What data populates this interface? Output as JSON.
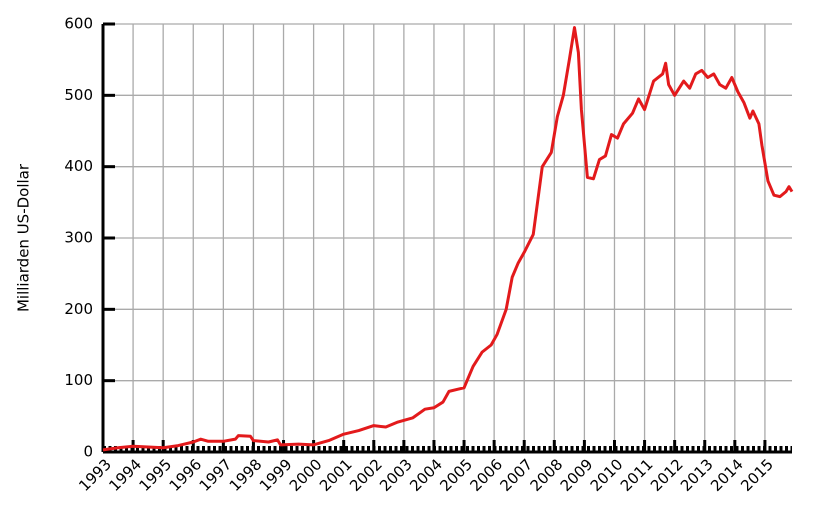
{
  "chart_data": {
    "type": "line",
    "y_label": "Milliarden US-Dollar",
    "xlim": [
      1993,
      2015.9
    ],
    "xticks": [
      1993,
      1994,
      1995,
      1996,
      1997,
      1998,
      1999,
      2000,
      2001,
      2002,
      2003,
      2004,
      2005,
      2006,
      2007,
      2008,
      2009,
      2010,
      2011,
      2012,
      2013,
      2014,
      2015
    ],
    "ylim": [
      0,
      600
    ],
    "yticks": [
      0,
      100,
      200,
      300,
      400,
      500,
      600
    ],
    "grid": true,
    "x": [
      1993.0,
      1993.5,
      1994.0,
      1994.5,
      1995.0,
      1995.5,
      1996.0,
      1996.25,
      1996.5,
      1997.0,
      1997.4,
      1997.5,
      1997.9,
      1998.0,
      1998.5,
      1998.8,
      1998.9,
      1999.5,
      2000.0,
      2000.5,
      2001.0,
      2001.5,
      2002.0,
      2002.4,
      2002.8,
      2003.3,
      2003.7,
      2004.0,
      2004.3,
      2004.5,
      2004.8,
      2005.0,
      2005.3,
      2005.6,
      2005.9,
      2006.1,
      2006.4,
      2006.6,
      2006.8,
      2007.0,
      2007.3,
      2007.6,
      2007.9,
      2008.1,
      2008.3,
      2008.5,
      2008.67,
      2008.8,
      2008.9,
      2009.1,
      2009.3,
      2009.5,
      2009.7,
      2009.9,
      2010.1,
      2010.3,
      2010.6,
      2010.8,
      2011.0,
      2011.3,
      2011.6,
      2011.7,
      2011.8,
      2012.0,
      2012.3,
      2012.5,
      2012.7,
      2012.9,
      2013.1,
      2013.3,
      2013.5,
      2013.7,
      2013.9,
      2014.1,
      2014.3,
      2014.5,
      2014.6,
      2014.8,
      2014.9,
      2015.1,
      2015.3,
      2015.5,
      2015.7,
      2015.8,
      2015.9
    ],
    "series": [
      {
        "color": "#e31a1c",
        "values": [
          3,
          6,
          8,
          7,
          6,
          9,
          14,
          18,
          15,
          15,
          18,
          23,
          22,
          16,
          14,
          17,
          10,
          11,
          10,
          16,
          25,
          30,
          37,
          35,
          42,
          48,
          60,
          62,
          70,
          85,
          88,
          90,
          120,
          140,
          150,
          165,
          200,
          245,
          265,
          280,
          305,
          400,
          420,
          470,
          500,
          550,
          595,
          560,
          480,
          385,
          383,
          410,
          415,
          445,
          440,
          460,
          475,
          495,
          480,
          520,
          530,
          545,
          515,
          500,
          520,
          510,
          530,
          535,
          525,
          530,
          515,
          510,
          525,
          505,
          490,
          468,
          478,
          460,
          430,
          380,
          360,
          358,
          365,
          372,
          365
        ]
      }
    ]
  }
}
